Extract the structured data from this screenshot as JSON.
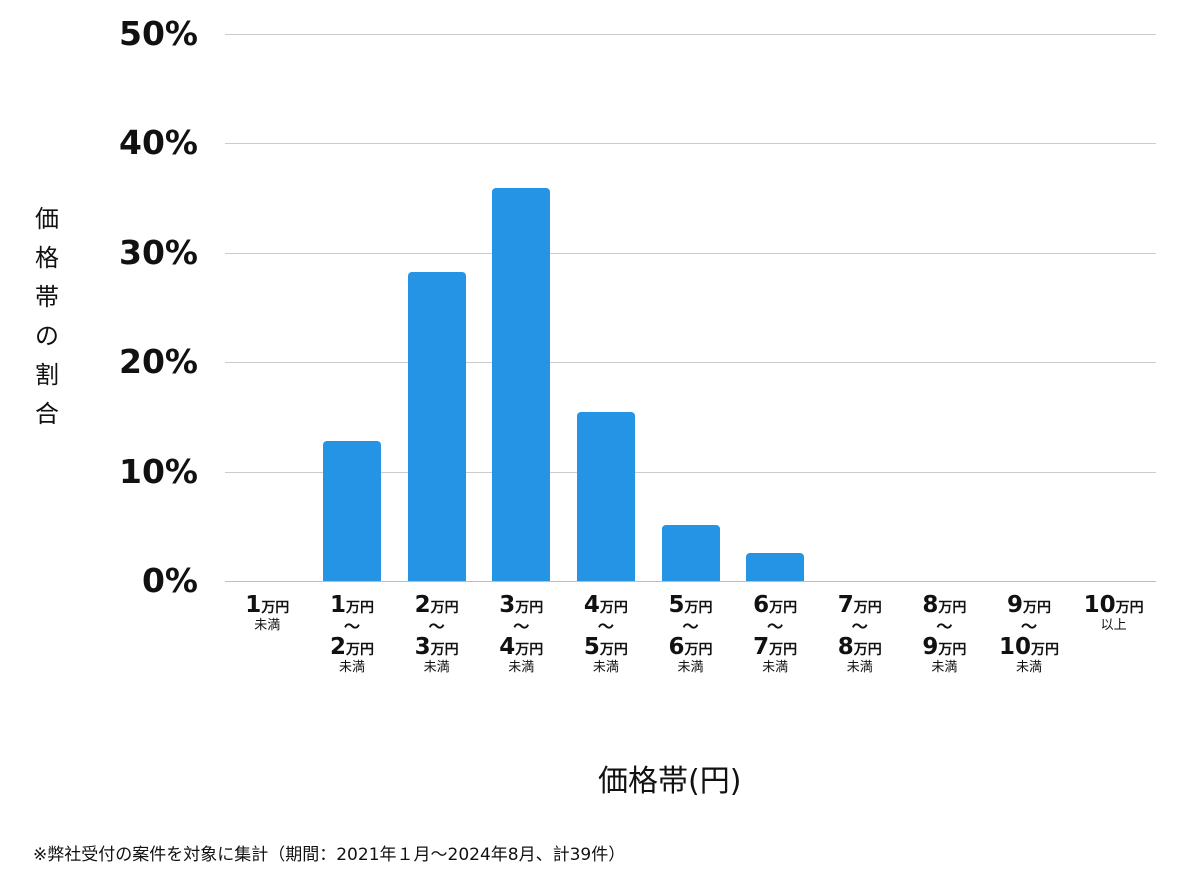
{
  "chart_data": {
    "type": "bar",
    "title": "",
    "xlabel": "価格帯(円)",
    "ylabel": "価格帯の割合",
    "ylim": [
      0,
      50
    ],
    "yticks": [
      "0%",
      "10%",
      "20%",
      "30%",
      "40%",
      "50%"
    ],
    "grid": true,
    "bar_color": "#2594e5",
    "categories": [
      "1万円未満",
      "1万円〜2万円未満",
      "2万円〜3万円未満",
      "3万円〜4万円未満",
      "4万円〜5万円未満",
      "5万円〜6万円未満",
      "6万円〜7万円未満",
      "7万円〜8万円未満",
      "8万円〜9万円未満",
      "9万円〜10万円未満",
      "10万円以上"
    ],
    "values": [
      0,
      12.8,
      28.2,
      35.9,
      15.4,
      5.1,
      2.6,
      0,
      0,
      0,
      0
    ],
    "note": "※弊社受付の案件を対象に集計（期間：2021年１月〜2024年8月、計39件）"
  },
  "ylabel_chars": [
    "価",
    "格",
    "帯",
    "の",
    "割",
    "合"
  ],
  "cat_labels": [
    {
      "from": "1",
      "to": "",
      "suffix": "未満"
    },
    {
      "from": "1",
      "to": "2",
      "suffix": "未満"
    },
    {
      "from": "2",
      "to": "3",
      "suffix": "未満"
    },
    {
      "from": "3",
      "to": "4",
      "suffix": "未満"
    },
    {
      "from": "4",
      "to": "5",
      "suffix": "未満"
    },
    {
      "from": "5",
      "to": "6",
      "suffix": "未満"
    },
    {
      "from": "6",
      "to": "7",
      "suffix": "未満"
    },
    {
      "from": "7",
      "to": "8",
      "suffix": "未満"
    },
    {
      "from": "8",
      "to": "9",
      "suffix": "未満"
    },
    {
      "from": "9",
      "to": "10",
      "suffix": "未満"
    },
    {
      "from": "10",
      "to": "",
      "suffix": "以上"
    }
  ],
  "unit": "万円",
  "tilde": "〜"
}
